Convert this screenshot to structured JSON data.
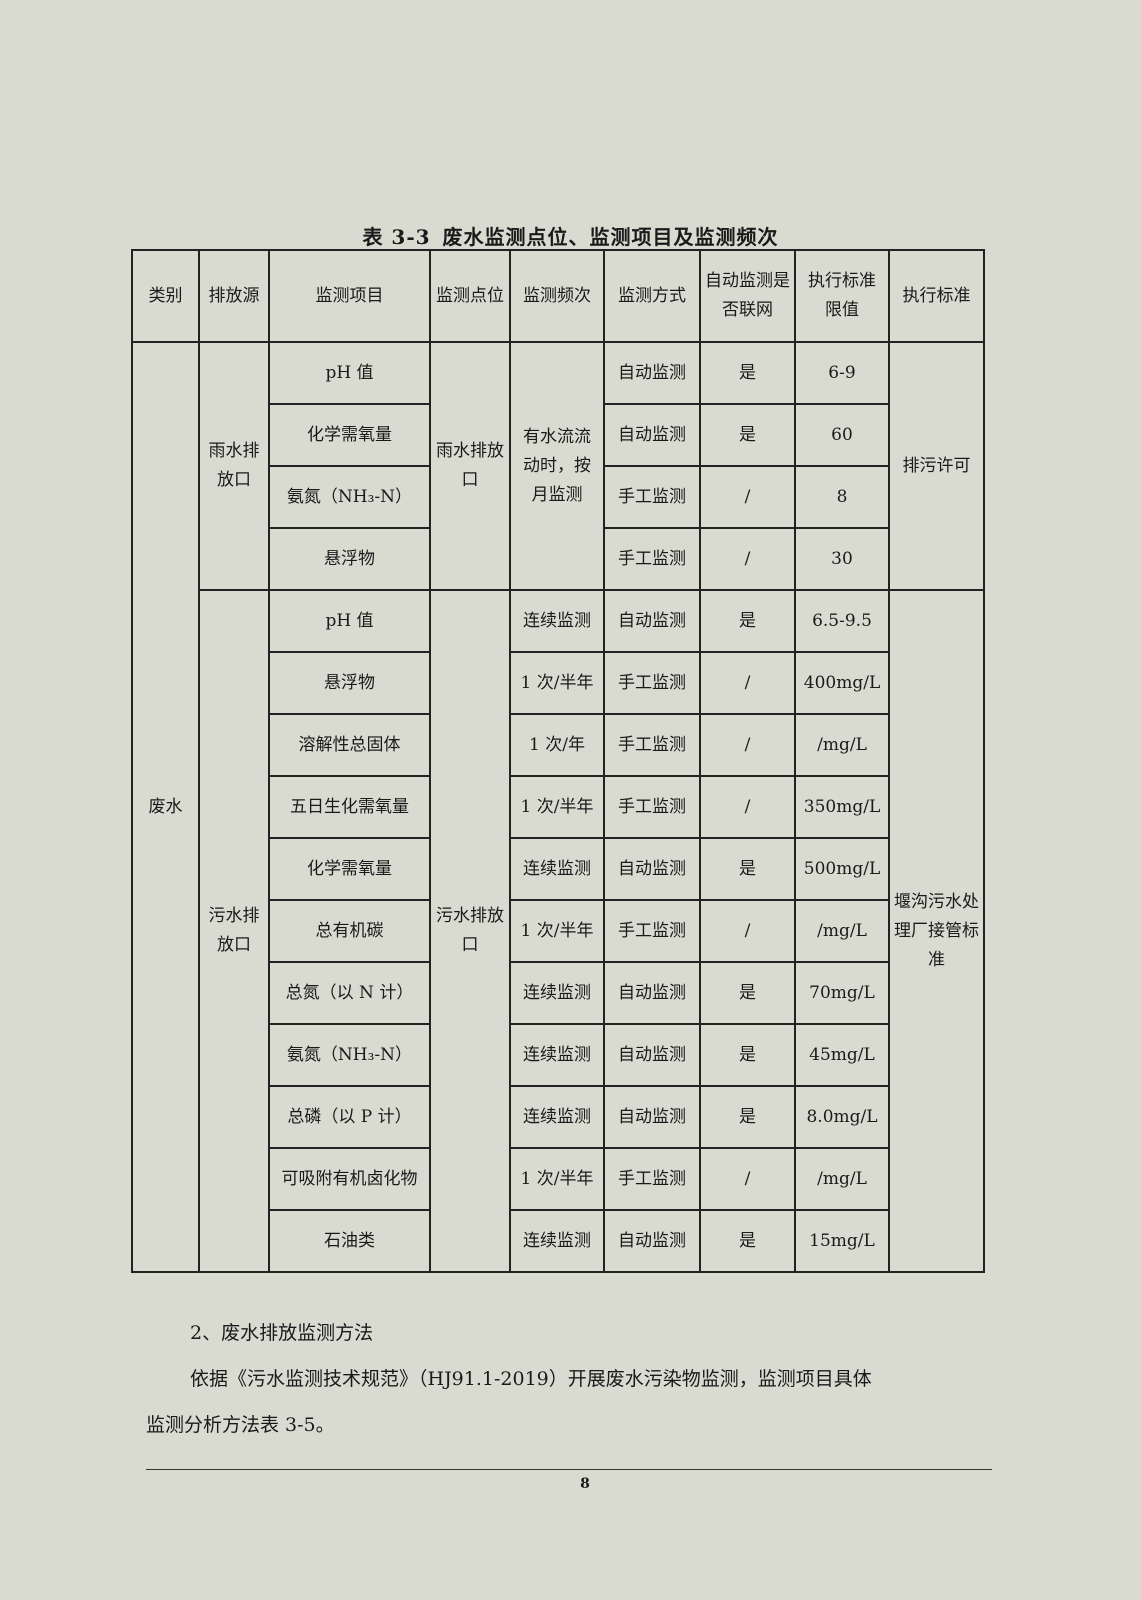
{
  "title": {
    "label": "表 3-3",
    "text": "废水监测点位、监测项目及监测频次"
  },
  "table": {
    "headers": [
      "类别",
      "排放源",
      "监测项目",
      "监测点位",
      "监测频次",
      "监测方式",
      "自动监测是否联网",
      "执行标准限值",
      "执行标准"
    ],
    "category": "废水",
    "groups": [
      {
        "source": "雨水排放口",
        "point": "雨水排放口",
        "frequency": "有水流流动时，按月监测",
        "standard": "排污许可",
        "rows": [
          {
            "item": "pH 值",
            "method": "自动监测",
            "online": "是",
            "limit": "6-9"
          },
          {
            "item": "化学需氧量",
            "method": "自动监测",
            "online": "是",
            "limit": "60"
          },
          {
            "item": "氨氮（NH₃-N）",
            "method": "手工监测",
            "online": "/",
            "limit": "8"
          },
          {
            "item": "悬浮物",
            "method": "手工监测",
            "online": "/",
            "limit": "30"
          }
        ]
      },
      {
        "source": "污水排放口",
        "point": "污水排放口",
        "standard": "堰沟污水处理厂接管标准",
        "rows": [
          {
            "item": "pH 值",
            "frequency": "连续监测",
            "method": "自动监测",
            "online": "是",
            "limit": "6.5-9.5"
          },
          {
            "item": "悬浮物",
            "frequency": "1 次/半年",
            "method": "手工监测",
            "online": "/",
            "limit": "400mg/L"
          },
          {
            "item": "溶解性总固体",
            "frequency": "1 次/年",
            "method": "手工监测",
            "online": "/",
            "limit": "/mg/L"
          },
          {
            "item": "五日生化需氧量",
            "frequency": "1 次/半年",
            "method": "手工监测",
            "online": "/",
            "limit": "350mg/L"
          },
          {
            "item": "化学需氧量",
            "frequency": "连续监测",
            "method": "自动监测",
            "online": "是",
            "limit": "500mg/L"
          },
          {
            "item": "总有机碳",
            "frequency": "1 次/半年",
            "method": "手工监测",
            "online": "/",
            "limit": "/mg/L"
          },
          {
            "item": "总氮（以 N 计）",
            "frequency": "连续监测",
            "method": "自动监测",
            "online": "是",
            "limit": "70mg/L"
          },
          {
            "item": "氨氮（NH₃-N）",
            "frequency": "连续监测",
            "method": "自动监测",
            "online": "是",
            "limit": "45mg/L"
          },
          {
            "item": "总磷（以 P 计）",
            "frequency": "连续监测",
            "method": "自动监测",
            "online": "是",
            "limit": "8.0mg/L"
          },
          {
            "item": "可吸附有机卤化物",
            "frequency": "1 次/半年",
            "method": "手工监测",
            "online": "/",
            "limit": "/mg/L"
          },
          {
            "item": "石油类",
            "frequency": "连续监测",
            "method": "自动监测",
            "online": "是",
            "limit": "15mg/L"
          }
        ]
      }
    ]
  },
  "section_heading": "2、废水排放监测方法",
  "paragraph_line1": "依据《污水监测技术规范》（HJ91.1-2019）开展废水污染物监测，监测项目具体",
  "paragraph_line2": "监测分析方法表 3-5。",
  "page_number": "8"
}
